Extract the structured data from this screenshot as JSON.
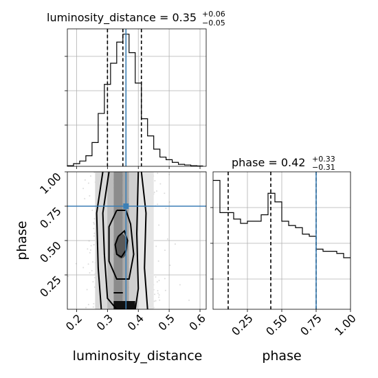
{
  "chart_data": {
    "type": "corner",
    "parameters": [
      "luminosity_distance",
      "phase"
    ],
    "truths": {
      "luminosity_distance": 0.36,
      "phase": 0.75
    },
    "colors": {
      "truth": "#3b7fb5",
      "hist": "#000000",
      "grid": "#b0b0b0"
    },
    "diag1": {
      "title_main": "luminosity_distance = 0.35",
      "title_plus": "+0.06",
      "title_minus": "−0.05",
      "xlim": [
        0.17,
        0.62
      ],
      "quantiles": [
        0.3,
        0.35,
        0.41
      ],
      "bin_edges": [
        0.17,
        0.19,
        0.21,
        0.23,
        0.25,
        0.27,
        0.29,
        0.31,
        0.33,
        0.35,
        0.37,
        0.39,
        0.41,
        0.43,
        0.45,
        0.47,
        0.49,
        0.51,
        0.53,
        0.55,
        0.57,
        0.59,
        0.61
      ],
      "counts": [
        0.5,
        2,
        4,
        8,
        18,
        40,
        62,
        78,
        94,
        100,
        86,
        63,
        36,
        23,
        13,
        7,
        5,
        3,
        1.5,
        1,
        0.5,
        0.3
      ],
      "ymax": 100
    },
    "diag2": {
      "title_main": "phase = 0.42",
      "title_plus": "+0.33",
      "title_minus": "−0.31",
      "xlim": [
        0.0,
        1.0
      ],
      "xticks": [
        "0.25",
        "0.50",
        "0.75",
        "1.00"
      ],
      "xtick_values": [
        0.25,
        0.5,
        0.75,
        1.0
      ],
      "quantiles": [
        0.11,
        0.42,
        0.75
      ],
      "bin_edges": [
        0.0,
        0.05,
        0.1,
        0.15,
        0.2,
        0.25,
        0.3,
        0.35,
        0.4,
        0.45,
        0.5,
        0.55,
        0.6,
        0.65,
        0.7,
        0.75,
        0.8,
        0.85,
        0.9,
        0.95,
        1.0
      ],
      "counts": [
        60,
        45,
        45,
        42,
        40,
        41,
        41,
        44,
        54,
        50,
        41,
        39,
        38,
        35,
        34,
        28,
        27,
        27,
        26,
        24
      ],
      "ymax": 64
    },
    "joint": {
      "xlim": [
        0.17,
        0.62
      ],
      "ylim": [
        0.0,
        1.0
      ],
      "xticks": [
        "0.2",
        "0.3",
        "0.4",
        "0.5",
        "0.6"
      ],
      "xtick_values": [
        0.2,
        0.3,
        0.4,
        0.5,
        0.6
      ],
      "yticks": [
        "0.25",
        "0.50",
        "0.75",
        "1.00"
      ],
      "ytick_values": [
        0.25,
        0.5,
        0.75,
        1.0
      ]
    },
    "xlabel_1": "luminosity_distance",
    "xlabel_2": "phase",
    "ylabel_joint": "phase"
  }
}
